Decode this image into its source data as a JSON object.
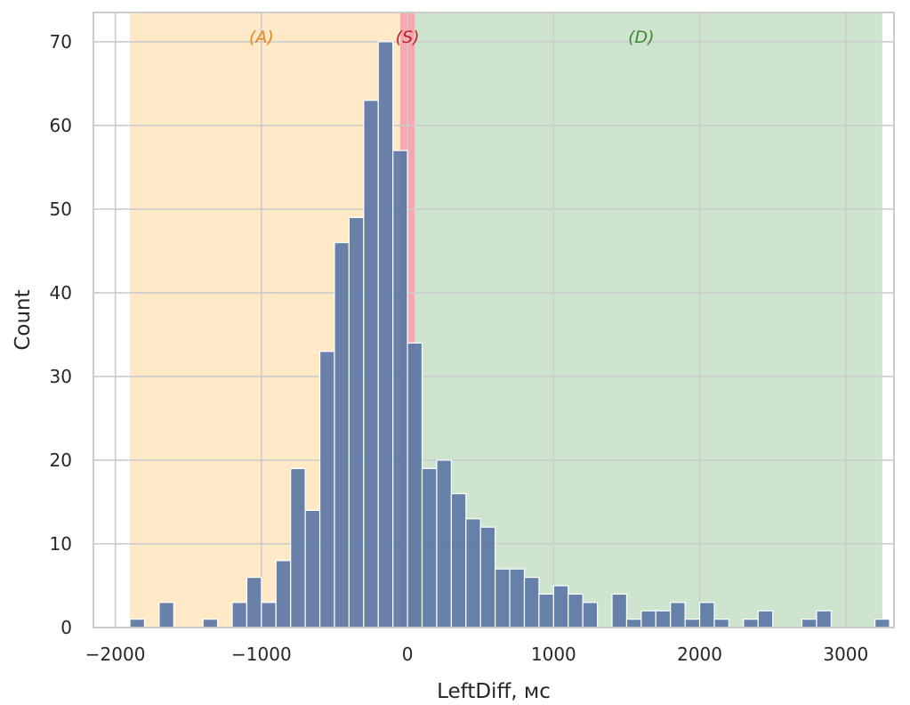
{
  "chart_data": {
    "type": "bar",
    "subtype": "histogram",
    "xlabel": "LeftDiff, мс",
    "ylabel": "Count",
    "xlim": [
      -2150,
      3330
    ],
    "ylim": [
      0,
      73.5
    ],
    "x_ticks": [
      -2000,
      -1000,
      0,
      1000,
      2000,
      3000
    ],
    "x_tick_labels": [
      "−2000",
      "−1000",
      "0",
      "1000",
      "2000",
      "3000"
    ],
    "y_ticks": [
      0,
      10,
      20,
      30,
      40,
      50,
      60,
      70
    ],
    "y_tick_labels": [
      "0",
      "10",
      "20",
      "30",
      "40",
      "50",
      "60",
      "70"
    ],
    "grid": true,
    "bin_width": 100,
    "bins": [
      {
        "x0": -1900,
        "x1": -1800,
        "count": 1
      },
      {
        "x0": -1800,
        "x1": -1700,
        "count": 0
      },
      {
        "x0": -1700,
        "x1": -1600,
        "count": 3
      },
      {
        "x0": -1600,
        "x1": -1500,
        "count": 0
      },
      {
        "x0": -1500,
        "x1": -1400,
        "count": 0
      },
      {
        "x0": -1400,
        "x1": -1300,
        "count": 1
      },
      {
        "x0": -1300,
        "x1": -1200,
        "count": 0
      },
      {
        "x0": -1200,
        "x1": -1100,
        "count": 3
      },
      {
        "x0": -1100,
        "x1": -1000,
        "count": 6
      },
      {
        "x0": -1000,
        "x1": -900,
        "count": 3
      },
      {
        "x0": -900,
        "x1": -800,
        "count": 8
      },
      {
        "x0": -800,
        "x1": -700,
        "count": 19
      },
      {
        "x0": -700,
        "x1": -600,
        "count": 14
      },
      {
        "x0": -600,
        "x1": -500,
        "count": 33
      },
      {
        "x0": -500,
        "x1": -400,
        "count": 46
      },
      {
        "x0": -400,
        "x1": -300,
        "count": 49
      },
      {
        "x0": -300,
        "x1": -200,
        "count": 63
      },
      {
        "x0": -200,
        "x1": -100,
        "count": 70
      },
      {
        "x0": -100,
        "x1": 0,
        "count": 57
      },
      {
        "x0": 0,
        "x1": 100,
        "count": 34
      },
      {
        "x0": 100,
        "x1": 200,
        "count": 19
      },
      {
        "x0": 200,
        "x1": 300,
        "count": 20
      },
      {
        "x0": 300,
        "x1": 400,
        "count": 16
      },
      {
        "x0": 400,
        "x1": 500,
        "count": 13
      },
      {
        "x0": 500,
        "x1": 600,
        "count": 12
      },
      {
        "x0": 600,
        "x1": 700,
        "count": 7
      },
      {
        "x0": 700,
        "x1": 800,
        "count": 7
      },
      {
        "x0": 800,
        "x1": 900,
        "count": 6
      },
      {
        "x0": 900,
        "x1": 1000,
        "count": 4
      },
      {
        "x0": 1000,
        "x1": 1100,
        "count": 5
      },
      {
        "x0": 1100,
        "x1": 1200,
        "count": 4
      },
      {
        "x0": 1200,
        "x1": 1300,
        "count": 3
      },
      {
        "x0": 1300,
        "x1": 1400,
        "count": 0
      },
      {
        "x0": 1400,
        "x1": 1500,
        "count": 4
      },
      {
        "x0": 1500,
        "x1": 1600,
        "count": 1
      },
      {
        "x0": 1600,
        "x1": 1700,
        "count": 2
      },
      {
        "x0": 1700,
        "x1": 1800,
        "count": 2
      },
      {
        "x0": 1800,
        "x1": 1900,
        "count": 3
      },
      {
        "x0": 1900,
        "x1": 2000,
        "count": 1
      },
      {
        "x0": 2000,
        "x1": 2100,
        "count": 3
      },
      {
        "x0": 2100,
        "x1": 2200,
        "count": 1
      },
      {
        "x0": 2200,
        "x1": 2300,
        "count": 0
      },
      {
        "x0": 2300,
        "x1": 2400,
        "count": 1
      },
      {
        "x0": 2400,
        "x1": 2500,
        "count": 2
      },
      {
        "x0": 2500,
        "x1": 2600,
        "count": 0
      },
      {
        "x0": 2600,
        "x1": 2700,
        "count": 0
      },
      {
        "x0": 2700,
        "x1": 2800,
        "count": 1
      },
      {
        "x0": 2800,
        "x1": 2900,
        "count": 2
      },
      {
        "x0": 2900,
        "x1": 3000,
        "count": 0
      },
      {
        "x0": 3000,
        "x1": 3100,
        "count": 0
      },
      {
        "x0": 3100,
        "x1": 3200,
        "count": 0
      },
      {
        "x0": 3200,
        "x1": 3300,
        "count": 1
      }
    ],
    "bar_color": "#5975a4",
    "regions": [
      {
        "label": "(A)",
        "x0": -1900,
        "x1": -50,
        "fill": "#ffe9c6",
        "text_color": "#e6861c"
      },
      {
        "label": "(S)",
        "x0": -50,
        "x1": 50,
        "fill": "#f7a7ad",
        "text_color": "#c22025"
      },
      {
        "label": "(D)",
        "x0": 50,
        "x1": 3250,
        "fill": "#cfe4cf",
        "text_color": "#3a8a2e"
      }
    ]
  }
}
